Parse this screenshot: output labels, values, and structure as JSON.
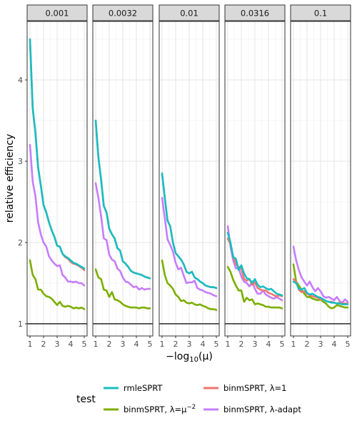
{
  "chart_data": {
    "type": "line",
    "ylabel": "relative efficiency",
    "xlabel_prefix": "−log",
    "xlabel_sub": "10",
    "xlabel_suffix": "(μ)",
    "xlim": [
      1,
      5
    ],
    "ylim": [
      0.85,
      4.72
    ],
    "x_ticks": [
      "1",
      "2",
      "3",
      "4",
      "5"
    ],
    "y_ticks": [
      1,
      2,
      3,
      4
    ],
    "hline": 1,
    "grid": true,
    "legend_placement": "bottom",
    "legend_title": "test",
    "legend": [
      {
        "key": "rmle",
        "label": "rmleSPRT",
        "color": "#16bec3"
      },
      {
        "key": "binm",
        "label_main": "binmSPRT, λ=μ",
        "label_sup": "−2",
        "color": "#7cae00"
      },
      {
        "key": "bin1",
        "label": "binmSPRT, λ=1",
        "color": "#f2766e"
      },
      {
        "key": "adapt",
        "label": "binmSPRT, λ-adapt",
        "color": "#c67cff"
      }
    ],
    "x": [
      1.0,
      1.2,
      1.4,
      1.6,
      1.8,
      2.0,
      2.2,
      2.4,
      2.6,
      2.8,
      3.0,
      3.2,
      3.4,
      3.6,
      3.8,
      4.0,
      4.2,
      4.4,
      4.6,
      4.8,
      5.0
    ],
    "panels": [
      {
        "title": "0.001",
        "series": {
          "rmle": [
            4.5,
            3.65,
            3.35,
            2.92,
            2.7,
            2.46,
            2.37,
            2.25,
            2.15,
            2.07,
            1.96,
            1.95,
            1.86,
            1.83,
            1.81,
            1.78,
            1.75,
            1.74,
            1.72,
            1.7,
            1.68
          ],
          "bin1": [
            4.5,
            3.65,
            3.35,
            2.92,
            2.7,
            2.46,
            2.37,
            2.25,
            2.15,
            2.07,
            1.96,
            1.95,
            1.86,
            1.82,
            1.8,
            1.76,
            1.74,
            1.73,
            1.71,
            1.69,
            1.66
          ],
          "binm": [
            1.78,
            1.6,
            1.55,
            1.42,
            1.42,
            1.37,
            1.34,
            1.33,
            1.31,
            1.27,
            1.23,
            1.27,
            1.22,
            1.21,
            1.22,
            1.21,
            1.19,
            1.2,
            1.19,
            1.2,
            1.18
          ],
          "adapt": [
            3.2,
            2.75,
            2.57,
            2.25,
            2.1,
            2.0,
            1.95,
            1.83,
            1.78,
            1.74,
            1.71,
            1.72,
            1.6,
            1.57,
            1.52,
            1.52,
            1.51,
            1.52,
            1.5,
            1.5,
            1.47
          ]
        }
      },
      {
        "title": "0.0032",
        "series": {
          "rmle": [
            3.5,
            3.05,
            2.77,
            2.45,
            2.37,
            2.17,
            2.1,
            2.05,
            1.93,
            1.9,
            1.77,
            1.74,
            1.7,
            1.65,
            1.63,
            1.62,
            1.61,
            1.6,
            1.58,
            1.57,
            1.56
          ],
          "bin1": [
            3.5,
            3.05,
            2.77,
            2.45,
            2.37,
            2.17,
            2.1,
            2.05,
            1.93,
            1.9,
            1.77,
            1.74,
            1.7,
            1.65,
            1.63,
            1.62,
            1.61,
            1.6,
            1.58,
            1.57,
            1.56
          ],
          "binm": [
            1.67,
            1.57,
            1.55,
            1.42,
            1.41,
            1.33,
            1.39,
            1.3,
            1.29,
            1.27,
            1.24,
            1.22,
            1.21,
            1.2,
            1.2,
            1.2,
            1.19,
            1.2,
            1.2,
            1.19,
            1.19
          ],
          "adapt": [
            2.73,
            2.55,
            2.32,
            2.05,
            2.03,
            1.85,
            1.79,
            1.77,
            1.68,
            1.65,
            1.57,
            1.52,
            1.51,
            1.48,
            1.45,
            1.46,
            1.42,
            1.44,
            1.42,
            1.43,
            1.43
          ]
        }
      },
      {
        "title": "0.01",
        "series": {
          "rmle": [
            2.85,
            2.55,
            2.27,
            2.2,
            2.0,
            1.87,
            1.83,
            1.79,
            1.73,
            1.64,
            1.62,
            1.64,
            1.57,
            1.55,
            1.52,
            1.5,
            1.47,
            1.46,
            1.45,
            1.45,
            1.44
          ],
          "bin1": [
            2.85,
            2.55,
            2.27,
            2.2,
            2.0,
            1.87,
            1.83,
            1.79,
            1.73,
            1.64,
            1.62,
            1.64,
            1.57,
            1.55,
            1.52,
            1.5,
            1.47,
            1.46,
            1.45,
            1.45,
            1.44
          ],
          "binm": [
            1.78,
            1.6,
            1.5,
            1.47,
            1.43,
            1.36,
            1.33,
            1.28,
            1.29,
            1.26,
            1.25,
            1.26,
            1.24,
            1.23,
            1.24,
            1.22,
            1.21,
            1.19,
            1.18,
            1.18,
            1.17
          ],
          "adapt": [
            2.55,
            2.3,
            2.04,
            1.97,
            1.89,
            1.75,
            1.67,
            1.69,
            1.59,
            1.5,
            1.51,
            1.51,
            1.53,
            1.44,
            1.42,
            1.41,
            1.39,
            1.38,
            1.37,
            1.35,
            1.34
          ]
        }
      },
      {
        "title": "0.0316",
        "series": {
          "rmle": [
            2.12,
            2.0,
            1.82,
            1.8,
            1.66,
            1.72,
            1.62,
            1.56,
            1.55,
            1.5,
            1.55,
            1.48,
            1.45,
            1.46,
            1.44,
            1.42,
            1.43,
            1.4,
            1.37,
            1.36,
            1.35
          ],
          "bin1": [
            2.05,
            1.98,
            1.83,
            1.73,
            1.7,
            1.68,
            1.55,
            1.53,
            1.55,
            1.48,
            1.51,
            1.44,
            1.42,
            1.41,
            1.41,
            1.38,
            1.37,
            1.35,
            1.34,
            1.35,
            1.34
          ],
          "binm": [
            1.7,
            1.64,
            1.54,
            1.47,
            1.41,
            1.41,
            1.27,
            1.32,
            1.29,
            1.3,
            1.24,
            1.25,
            1.24,
            1.23,
            1.21,
            1.21,
            1.2,
            1.2,
            1.2,
            1.2,
            1.19
          ],
          "adapt": [
            2.2,
            1.95,
            1.78,
            1.68,
            1.69,
            1.58,
            1.52,
            1.5,
            1.46,
            1.52,
            1.43,
            1.37,
            1.37,
            1.41,
            1.36,
            1.34,
            1.32,
            1.31,
            1.33,
            1.31,
            1.29
          ]
        }
      },
      {
        "title": "0.1",
        "series": {
          "rmle": [
            1.52,
            1.5,
            1.43,
            1.42,
            1.44,
            1.38,
            1.36,
            1.37,
            1.35,
            1.33,
            1.32,
            1.3,
            1.28,
            1.27,
            1.26,
            1.26,
            1.25,
            1.25,
            1.24,
            1.24,
            1.24
          ],
          "bin1": [
            1.55,
            1.52,
            1.42,
            1.39,
            1.4,
            1.37,
            1.35,
            1.34,
            1.33,
            1.32,
            1.3,
            1.3,
            1.28,
            1.27,
            1.27,
            1.26,
            1.25,
            1.26,
            1.25,
            1.25,
            1.25
          ],
          "binm": [
            1.73,
            1.52,
            1.47,
            1.42,
            1.37,
            1.33,
            1.33,
            1.31,
            1.3,
            1.29,
            1.3,
            1.27,
            1.25,
            1.21,
            1.19,
            1.2,
            1.23,
            1.22,
            1.21,
            1.2,
            1.2
          ],
          "adapt": [
            1.95,
            1.78,
            1.66,
            1.57,
            1.52,
            1.47,
            1.52,
            1.45,
            1.4,
            1.44,
            1.4,
            1.34,
            1.32,
            1.33,
            1.31,
            1.29,
            1.33,
            1.28,
            1.26,
            1.3,
            1.27
          ]
        }
      }
    ]
  }
}
